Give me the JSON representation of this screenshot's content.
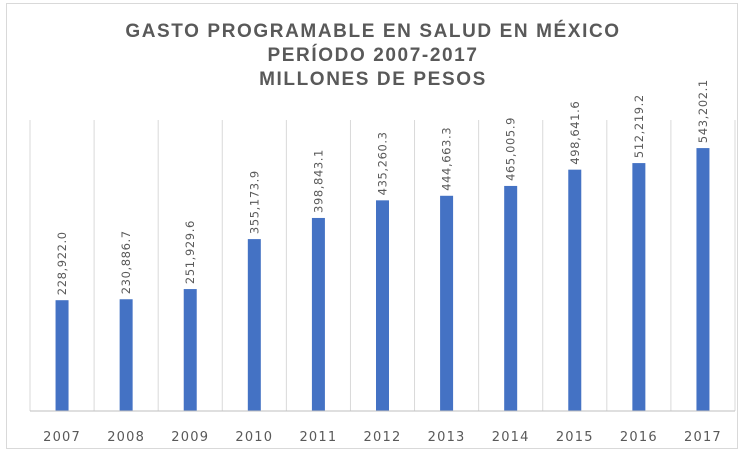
{
  "chart_data": {
    "type": "bar",
    "title": [
      "GASTO PROGRAMABLE EN SALUD EN MÉXICO",
      "PERÍODO 2007-2017",
      "MILLONES DE PESOS"
    ],
    "categories": [
      "2007",
      "2008",
      "2009",
      "2010",
      "2011",
      "2012",
      "2013",
      "2014",
      "2015",
      "2016",
      "2017"
    ],
    "values": [
      228922.0,
      230886.7,
      251929.6,
      355173.9,
      398843.1,
      435260.3,
      444663.3,
      465005.9,
      498641.6,
      512219.2,
      543202.1
    ],
    "data_labels": [
      "228,922.0",
      "230,886.7",
      "251,929.6",
      "355,173.9",
      "398,843.1",
      "435,260.3",
      "444,663.3",
      "465,005.9",
      "498,641.6",
      "512,219.2",
      "543,202.1"
    ],
    "xlabel": "",
    "ylabel": "",
    "ylim": [
      0,
      600000
    ],
    "grid": "vertical",
    "legend": "none",
    "colors": {
      "bar": "#4472c4",
      "grid": "#d9d9d9",
      "axis": "#bfbfbf",
      "text": "#595959"
    }
  }
}
